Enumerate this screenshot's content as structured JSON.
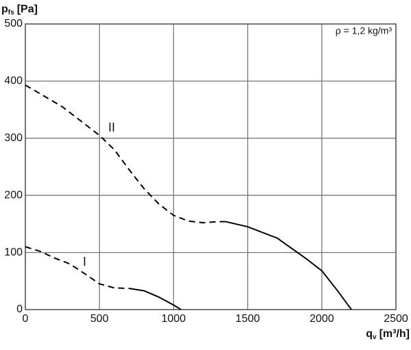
{
  "chart_data": {
    "type": "line",
    "y_label": {
      "symbol": "p",
      "sub": "fs",
      "unit": "[Pa]"
    },
    "x_label": {
      "symbol": "q",
      "sub": "v",
      "unit": "[m³/h]"
    },
    "annotation": "ρ = 1,2 kg/m³",
    "xlim": [
      0,
      2500
    ],
    "xticks": [
      0,
      500,
      1000,
      1500,
      2000,
      2500
    ],
    "ylim": [
      0,
      500
    ],
    "yticks": [
      0,
      100,
      200,
      300,
      400,
      500
    ],
    "grid": true,
    "series": [
      {
        "name": "II",
        "color": "#000000",
        "dash": "dashed",
        "x": [
          0,
          250,
          400,
          500,
          600,
          700,
          800,
          900,
          1000,
          1100,
          1200,
          1300,
          1350
        ],
        "values": [
          393,
          355,
          325,
          305,
          280,
          245,
          212,
          185,
          165,
          155,
          152,
          154,
          154
        ]
      },
      {
        "color": "#000000",
        "dash": "solid",
        "x": [
          1350,
          1500,
          1700,
          1900,
          2000,
          2100,
          2200
        ],
        "values": [
          154,
          145,
          125,
          88,
          68,
          35,
          0
        ]
      },
      {
        "name": "I",
        "color": "#000000",
        "dash": "dashed",
        "x": [
          0,
          100,
          200,
          300,
          400,
          500,
          600,
          700
        ],
        "values": [
          110,
          102,
          90,
          80,
          63,
          45,
          38,
          37
        ]
      },
      {
        "color": "#000000",
        "dash": "solid",
        "x": [
          700,
          800,
          900,
          1000,
          1050
        ],
        "values": [
          37,
          33,
          22,
          8,
          0
        ]
      }
    ]
  }
}
